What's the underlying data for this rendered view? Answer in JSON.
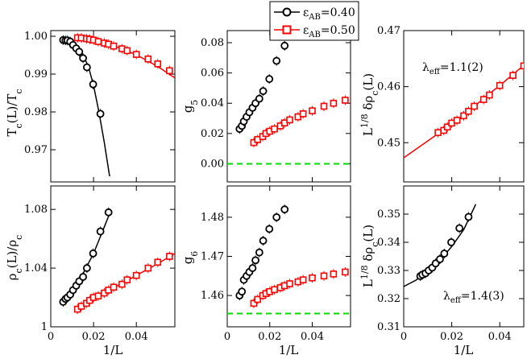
{
  "legend": [
    {
      "label": "ε",
      "sub": "AB",
      "value": "=0.40",
      "color": "#000000",
      "marker": "circle"
    },
    {
      "label": "ε",
      "sub": "AB",
      "value": "=0.50",
      "color": "#ff0000",
      "marker": "square"
    }
  ],
  "colors": {
    "series_a": "#000000",
    "series_b": "#ff0000",
    "reference": "#00dd00"
  },
  "chart_data": [
    {
      "id": "p1",
      "type": "scatter",
      "ylabel": "T_c(L)/T_c",
      "xlabel": "",
      "xlim": [
        0,
        0.058
      ],
      "ylim": [
        0.9615,
        1.0015
      ],
      "xticks": [
        0,
        0.02,
        0.04
      ],
      "xtick_labels": [],
      "yticks": [
        0.97,
        0.98,
        0.99,
        1.0
      ],
      "ytick_labels": [
        "0.97",
        "0.98",
        "0.99",
        "1.00"
      ],
      "series": [
        {
          "name": "ε_AB=0.40",
          "marker": "circle",
          "color": "#000000",
          "x": [
            0.0058,
            0.0069,
            0.0078,
            0.0091,
            0.0104,
            0.0119,
            0.0133,
            0.0151,
            0.0169,
            0.0198,
            0.0232
          ],
          "y": [
            0.999,
            0.9989,
            0.9989,
            0.9986,
            0.9977,
            0.9968,
            0.9959,
            0.9942,
            0.9918,
            0.9873,
            0.9795
          ],
          "curve_x": [
            0.0055,
            0.0075,
            0.01,
            0.0125,
            0.015,
            0.0175,
            0.02,
            0.0225,
            0.025,
            0.0275
          ],
          "curve_y": [
            0.9992,
            0.999,
            0.9983,
            0.997,
            0.995,
            0.9922,
            0.987,
            0.98,
            0.972,
            0.963
          ]
        },
        {
          "name": "ε_AB=0.50",
          "marker": "square",
          "color": "#ff0000",
          "x": [
            0.0125,
            0.0143,
            0.0167,
            0.0182,
            0.02,
            0.0222,
            0.025,
            0.027,
            0.0294,
            0.0333,
            0.0357,
            0.04,
            0.0455,
            0.05,
            0.0555
          ],
          "y": [
            0.9996,
            0.99955,
            0.99935,
            0.9992,
            0.999,
            0.9986,
            0.9982,
            0.9979,
            0.9974,
            0.9967,
            0.9962,
            0.9952,
            0.994,
            0.9927,
            0.9909
          ],
          "curve_x": [
            0.0125,
            0.02,
            0.03,
            0.04,
            0.05,
            0.058
          ],
          "curve_y": [
            0.99965,
            0.9991,
            0.9974,
            0.9951,
            0.992,
            0.989
          ]
        }
      ]
    },
    {
      "id": "p2",
      "type": "scatter",
      "ylabel": "g_5",
      "xlabel": "",
      "xlim": [
        0,
        0.058
      ],
      "ylim": [
        -0.012,
        0.088
      ],
      "xticks": [
        0,
        0.02,
        0.04
      ],
      "xtick_labels": [],
      "yticks": [
        0,
        0.02,
        0.04,
        0.06,
        0.08
      ],
      "ytick_labels": [
        "0.00",
        "0.02",
        "0.04",
        "0.06",
        "0.08"
      ],
      "reference_line": 0.0,
      "series": [
        {
          "name": "ε_AB=0.40",
          "marker": "circle",
          "color": "#000000",
          "x": [
            0.0058,
            0.0069,
            0.0078,
            0.0091,
            0.0104,
            0.0119,
            0.0133,
            0.0151,
            0.0169,
            0.0198,
            0.0232,
            0.027
          ],
          "y": [
            0.023,
            0.025,
            0.028,
            0.031,
            0.034,
            0.037,
            0.04,
            0.043,
            0.048,
            0.056,
            0.068,
            0.078
          ]
        },
        {
          "name": "ε_AB=0.50",
          "marker": "square",
          "color": "#ff0000",
          "x": [
            0.0125,
            0.0143,
            0.0167,
            0.0182,
            0.02,
            0.0222,
            0.025,
            0.027,
            0.0294,
            0.0333,
            0.0357,
            0.04,
            0.0455,
            0.05,
            0.0555
          ],
          "y": [
            0.014,
            0.016,
            0.018,
            0.02,
            0.0215,
            0.023,
            0.025,
            0.027,
            0.029,
            0.031,
            0.033,
            0.035,
            0.038,
            0.04,
            0.042
          ]
        }
      ]
    },
    {
      "id": "p3",
      "type": "scatter",
      "ylabel": "L^{1/8} δρ_c(L)",
      "xlabel": "",
      "xlim": [
        0,
        0.05
      ],
      "ylim": [
        0.443,
        0.47
      ],
      "xticks": [
        0,
        0.02,
        0.04
      ],
      "xtick_labels": [],
      "yticks": [
        0.45,
        0.46,
        0.47
      ],
      "ytick_labels": [
        "0.45",
        "0.46",
        "0.47"
      ],
      "annotation": {
        "text": "λ",
        "sub": "eff",
        "value": "=1.1(2)"
      },
      "series": [
        {
          "name": "ε_AB=0.50",
          "marker": "square",
          "color": "#ff0000",
          "x": [
            0.0143,
            0.0167,
            0.0182,
            0.02,
            0.0222,
            0.025,
            0.027,
            0.0294,
            0.0333,
            0.0357,
            0.04,
            0.0455,
            0.05
          ],
          "y": [
            0.4518,
            0.4522,
            0.4528,
            0.4535,
            0.454,
            0.4548,
            0.4556,
            0.4565,
            0.4577,
            0.4585,
            0.4602,
            0.462,
            0.4637
          ],
          "curve_x": [
            0.0,
            0.005,
            0.01,
            0.015,
            0.02,
            0.025,
            0.03,
            0.035,
            0.04,
            0.045,
            0.05
          ],
          "curve_y": [
            0.4473,
            0.4488,
            0.4503,
            0.4518,
            0.4533,
            0.455,
            0.4567,
            0.4585,
            0.4602,
            0.462,
            0.4638
          ]
        }
      ]
    },
    {
      "id": "p4",
      "type": "scatter",
      "ylabel": "ρ_c(L)/ρ_c",
      "xlabel": "1/L",
      "xlim": [
        0,
        0.058
      ],
      "ylim": [
        1.0,
        1.096
      ],
      "xticks": [
        0,
        0.02,
        0.04
      ],
      "xtick_labels": [
        "0",
        "0.02",
        "0.04"
      ],
      "yticks": [
        1.0,
        1.04,
        1.08
      ],
      "ytick_labels": [
        "1",
        "1.04",
        "1.08"
      ],
      "series": [
        {
          "name": "ε_AB=0.40",
          "marker": "circle",
          "color": "#000000",
          "x": [
            0.0058,
            0.0069,
            0.0078,
            0.0091,
            0.0104,
            0.0119,
            0.0133,
            0.0151,
            0.0169,
            0.0198,
            0.0232,
            0.027
          ],
          "y": [
            1.017,
            1.019,
            1.02,
            1.022,
            1.025,
            1.028,
            1.031,
            1.034,
            1.04,
            1.05,
            1.065,
            1.078
          ],
          "curve_x": [
            0.005,
            0.01,
            0.015,
            0.02,
            0.025,
            0.028
          ],
          "curve_y": [
            1.016,
            1.025,
            1.036,
            1.05,
            1.068,
            1.079
          ]
        },
        {
          "name": "ε_AB=0.50",
          "marker": "square",
          "color": "#ff0000",
          "x": [
            0.0125,
            0.0143,
            0.0167,
            0.0182,
            0.02,
            0.0222,
            0.025,
            0.027,
            0.0294,
            0.0333,
            0.0357,
            0.04,
            0.0455,
            0.05,
            0.0555
          ],
          "y": [
            1.012,
            1.014,
            1.016,
            1.018,
            1.02,
            1.021,
            1.023,
            1.025,
            1.027,
            1.029,
            1.032,
            1.035,
            1.04,
            1.044,
            1.048
          ],
          "curve_x": [
            0.0125,
            0.02,
            0.03,
            0.04,
            0.05,
            0.058
          ],
          "curve_y": [
            1.012,
            1.019,
            1.027,
            1.035,
            1.043,
            1.05
          ]
        }
      ]
    },
    {
      "id": "p5",
      "type": "scatter",
      "ylabel": "g_6",
      "xlabel": "1/L",
      "xlim": [
        0,
        0.058
      ],
      "ylim": [
        1.452,
        1.488
      ],
      "xticks": [
        0,
        0.02,
        0.04
      ],
      "xtick_labels": [
        "0",
        "0.02",
        "0.04"
      ],
      "yticks": [
        1.46,
        1.47,
        1.48
      ],
      "ytick_labels": [
        "1.46",
        "1.47",
        "1.48"
      ],
      "reference_line": 1.4554,
      "series": [
        {
          "name": "ε_AB=0.40",
          "marker": "circle",
          "color": "#000000",
          "x": [
            0.0058,
            0.0069,
            0.0078,
            0.0091,
            0.0104,
            0.0119,
            0.0133,
            0.0151,
            0.0169,
            0.0198,
            0.0232,
            0.027
          ],
          "y": [
            1.46,
            1.461,
            1.464,
            1.465,
            1.466,
            1.467,
            1.469,
            1.471,
            1.474,
            1.477,
            1.48,
            1.482
          ]
        },
        {
          "name": "ε_AB=0.50",
          "marker": "square",
          "color": "#ff0000",
          "x": [
            0.0125,
            0.0143,
            0.0167,
            0.0182,
            0.02,
            0.0222,
            0.025,
            0.027,
            0.0294,
            0.0333,
            0.0357,
            0.04,
            0.0455,
            0.05,
            0.0555
          ],
          "y": [
            1.458,
            1.459,
            1.46,
            1.4605,
            1.461,
            1.4615,
            1.462,
            1.4625,
            1.463,
            1.4635,
            1.464,
            1.4645,
            1.465,
            1.4655,
            1.466
          ]
        }
      ]
    },
    {
      "id": "p6",
      "type": "scatter",
      "ylabel": "L^{1/8} δρ_c(L)",
      "xlabel": "1/L",
      "xlim": [
        0,
        0.05
      ],
      "ylim": [
        0.31,
        0.36
      ],
      "xticks": [
        0,
        0.02,
        0.04
      ],
      "xtick_labels": [
        "0",
        "0.02",
        "0.04"
      ],
      "yticks": [
        0.31,
        0.32,
        0.33,
        0.34,
        0.35
      ],
      "ytick_labels": [
        "0.31",
        "0.32",
        "0.33",
        "0.34",
        "0.35"
      ],
      "annotation": {
        "text": "λ",
        "sub": "eff",
        "value": "=1.4(3)"
      },
      "series": [
        {
          "name": "ε_AB=0.40",
          "marker": "circle",
          "color": "#000000",
          "x": [
            0.0069,
            0.0078,
            0.0091,
            0.0104,
            0.0119,
            0.0133,
            0.0151,
            0.0169,
            0.0198,
            0.0232,
            0.027
          ],
          "y": [
            0.328,
            0.3285,
            0.329,
            0.33,
            0.331,
            0.3325,
            0.334,
            0.336,
            0.34,
            0.345,
            0.349
          ],
          "curve_x": [
            0.0,
            0.005,
            0.01,
            0.015,
            0.02,
            0.025,
            0.03
          ],
          "curve_y": [
            0.3243,
            0.3265,
            0.3295,
            0.3335,
            0.3385,
            0.3445,
            0.3535
          ]
        }
      ]
    }
  ]
}
